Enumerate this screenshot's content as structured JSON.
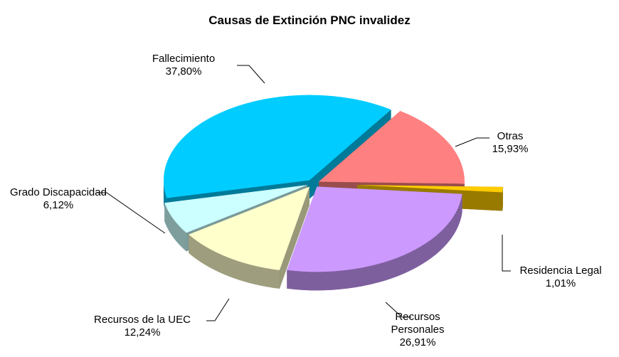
{
  "chart_data": {
    "type": "pie",
    "title": "Causas de Extinción PNC invalidez",
    "categories": [
      "Otras",
      "Residencia Legal",
      "Recursos Personales",
      "Recursos de la UEC",
      "Grado Discapacidad",
      "Fallecimiento"
    ],
    "values": [
      15.93,
      1.01,
      26.91,
      12.24,
      6.12,
      37.8
    ],
    "value_labels": [
      "15,93%",
      "1,01%",
      "26,91%",
      "12,24%",
      "6,12%",
      "37,80%"
    ],
    "colors": [
      "#ff8080",
      "#ffcc00",
      "#cc99ff",
      "#ffffcc",
      "#ccffff",
      "#00ccff"
    ]
  }
}
